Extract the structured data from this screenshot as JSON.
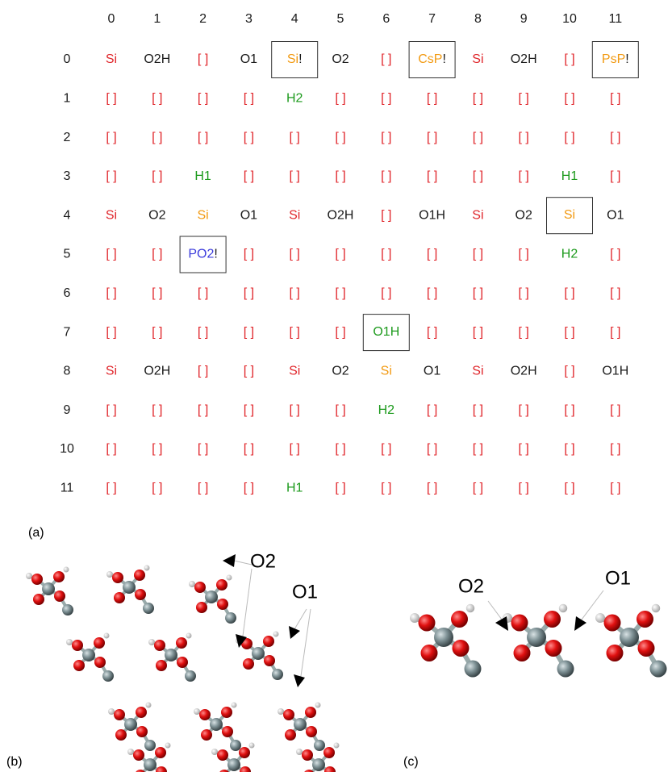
{
  "table": {
    "palette": {
      "r": "#e0262b",
      "k": "#1a1a1a",
      "o": "#f29a12",
      "g": "#1c9a1c",
      "b": "#3c3cdc"
    },
    "columns": [
      0,
      1,
      2,
      3,
      4,
      5,
      6,
      7,
      8,
      9,
      10,
      11
    ],
    "rows": [
      {
        "label": 0,
        "colors": "rkrkokrorkro",
        "cells": [
          "Si",
          "O2H",
          "[ ]",
          "O1",
          {
            "text": "Si",
            "suffix": "!",
            "box": true
          },
          "O2",
          "[ ]",
          {
            "text": "CsP",
            "suffix": "!",
            "box": true
          },
          "Si",
          "O2H",
          "[ ]",
          {
            "text": "PsP",
            "suffix": "!",
            "box": true
          }
        ]
      },
      {
        "label": 1,
        "colors": "rrrrgrrrrrrr",
        "cells": [
          "[ ]",
          "[ ]",
          "[ ]",
          "[ ]",
          "H2",
          "[ ]",
          "[ ]",
          "[ ]",
          "[ ]",
          "[ ]",
          "[ ]",
          "[ ]"
        ]
      },
      {
        "label": 2,
        "colors": "rrrrrrrrrrrr",
        "cells": [
          "[ ]",
          "[ ]",
          "[ ]",
          "[ ]",
          "[ ]",
          "[ ]",
          "[ ]",
          "[ ]",
          "[ ]",
          "[ ]",
          "[ ]",
          "[ ]"
        ]
      },
      {
        "label": 3,
        "colors": "rrgrrrrrrrgr",
        "cells": [
          "[ ]",
          "[ ]",
          "H1",
          "[ ]",
          "[ ]",
          "[ ]",
          "[ ]",
          "[ ]",
          "[ ]",
          "[ ]",
          "H1",
          "[ ]"
        ]
      },
      {
        "label": 4,
        "colors": "rkokrkrkrkok",
        "cells": [
          "Si",
          "O2",
          "Si",
          "O1",
          "Si",
          "O2H",
          "[ ]",
          "O1H",
          "Si",
          "O2",
          {
            "text": "Si",
            "box": true
          },
          "O1"
        ]
      },
      {
        "label": 5,
        "colors": "rrbrrrrrrrgr",
        "cells": [
          "[ ]",
          "[ ]",
          {
            "text": "PO2",
            "suffix": "!",
            "box": true
          },
          "[ ]",
          "[ ]",
          "[ ]",
          "[ ]",
          "[ ]",
          "[ ]",
          "[ ]",
          "H2",
          "[ ]"
        ]
      },
      {
        "label": 6,
        "colors": "rrrrrrrrrrrr",
        "cells": [
          "[ ]",
          "[ ]",
          "[ ]",
          "[ ]",
          "[ ]",
          "[ ]",
          "[ ]",
          "[ ]",
          "[ ]",
          "[ ]",
          "[ ]",
          "[ ]"
        ]
      },
      {
        "label": 7,
        "colors": "rrrrrrgrrrrr",
        "cells": [
          "[ ]",
          "[ ]",
          "[ ]",
          "[ ]",
          "[ ]",
          "[ ]",
          {
            "text": "O1H",
            "box": true
          },
          "[ ]",
          "[ ]",
          "[ ]",
          "[ ]",
          "[ ]"
        ]
      },
      {
        "label": 8,
        "colors": "rkrrrkokrkrk",
        "cells": [
          "Si",
          "O2H",
          "[ ]",
          "[ ]",
          "Si",
          "O2",
          "Si",
          "O1",
          "Si",
          "O2H",
          "[ ]",
          "O1H"
        ]
      },
      {
        "label": 9,
        "colors": "rrrrrrgrrrrr",
        "cells": [
          "[ ]",
          "[ ]",
          "[ ]",
          "[ ]",
          "[ ]",
          "[ ]",
          "H2",
          "[ ]",
          "[ ]",
          "[ ]",
          "[ ]",
          "[ ]"
        ]
      },
      {
        "label": 10,
        "colors": "rrrrrrrrrrrr",
        "cells": [
          "[ ]",
          "[ ]",
          "[ ]",
          "[ ]",
          "[ ]",
          "[ ]",
          "[ ]",
          "[ ]",
          "[ ]",
          "[ ]",
          "[ ]",
          "[ ]"
        ]
      },
      {
        "label": 11,
        "colors": "rrrrgrrrrrrr",
        "cells": [
          "[ ]",
          "[ ]",
          "[ ]",
          "[ ]",
          "H1",
          "[ ]",
          "[ ]",
          "[ ]",
          "[ ]",
          "[ ]",
          "[ ]",
          "[ ]"
        ]
      }
    ]
  },
  "panel_a": {
    "label": "(a)"
  },
  "panel_b": {
    "label": "(b)",
    "annotations": [
      "O2",
      "O1"
    ]
  },
  "panel_c": {
    "label": "(c)",
    "annotations": [
      "O2",
      "O1"
    ]
  }
}
